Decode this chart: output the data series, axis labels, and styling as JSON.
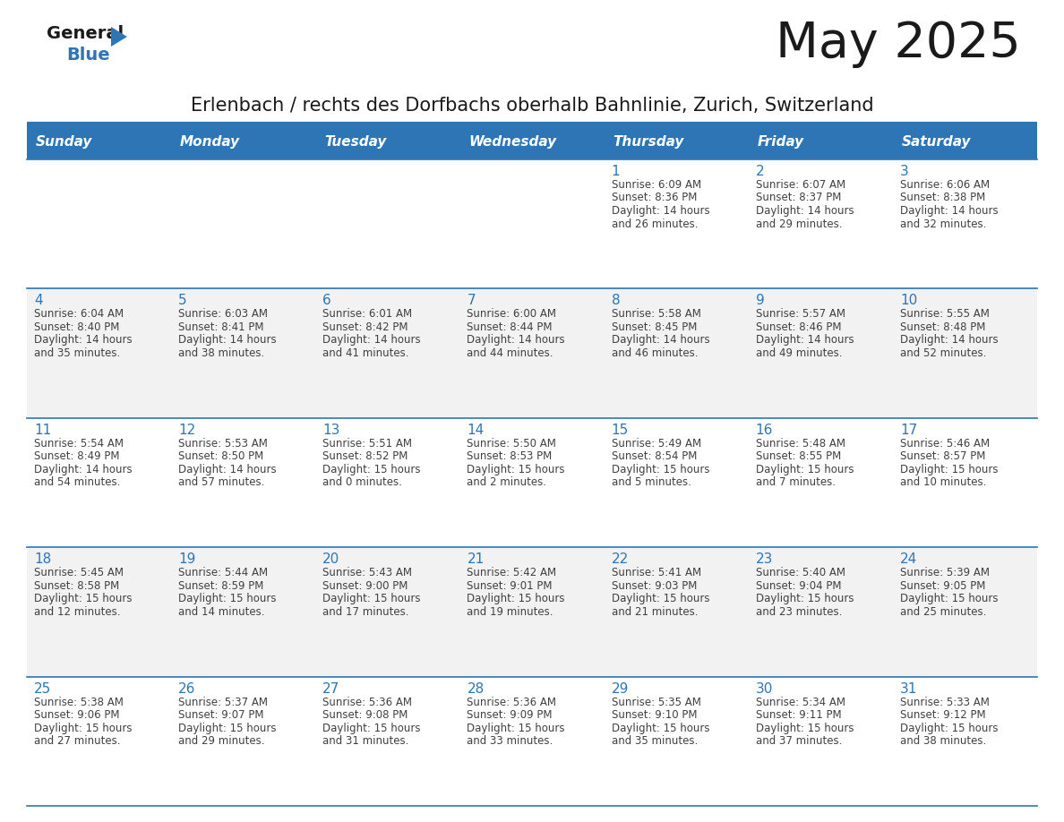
{
  "title": "May 2025",
  "subtitle": "Erlenbach / rechts des Dorfbachs oberhalb Bahnlinie, Zurich, Switzerland",
  "days_of_week": [
    "Sunday",
    "Monday",
    "Tuesday",
    "Wednesday",
    "Thursday",
    "Friday",
    "Saturday"
  ],
  "header_bg": "#2E75B6",
  "header_text": "#FFFFFF",
  "row_bg_odd": "#F2F2F2",
  "row_bg_even": "#FFFFFF",
  "day_num_color": "#2E75B6",
  "text_color": "#404040",
  "border_color": "#2E75B6",
  "logo_color": "#2E75B6",
  "weeks": [
    [
      {
        "day": null
      },
      {
        "day": null
      },
      {
        "day": null
      },
      {
        "day": null
      },
      {
        "day": 1,
        "sunrise": "6:09 AM",
        "sunset": "8:36 PM",
        "daylight": "14 hours",
        "daylight2": "and 26 minutes."
      },
      {
        "day": 2,
        "sunrise": "6:07 AM",
        "sunset": "8:37 PM",
        "daylight": "14 hours",
        "daylight2": "and 29 minutes."
      },
      {
        "day": 3,
        "sunrise": "6:06 AM",
        "sunset": "8:38 PM",
        "daylight": "14 hours",
        "daylight2": "and 32 minutes."
      }
    ],
    [
      {
        "day": 4,
        "sunrise": "6:04 AM",
        "sunset": "8:40 PM",
        "daylight": "14 hours",
        "daylight2": "and 35 minutes."
      },
      {
        "day": 5,
        "sunrise": "6:03 AM",
        "sunset": "8:41 PM",
        "daylight": "14 hours",
        "daylight2": "and 38 minutes."
      },
      {
        "day": 6,
        "sunrise": "6:01 AM",
        "sunset": "8:42 PM",
        "daylight": "14 hours",
        "daylight2": "and 41 minutes."
      },
      {
        "day": 7,
        "sunrise": "6:00 AM",
        "sunset": "8:44 PM",
        "daylight": "14 hours",
        "daylight2": "and 44 minutes."
      },
      {
        "day": 8,
        "sunrise": "5:58 AM",
        "sunset": "8:45 PM",
        "daylight": "14 hours",
        "daylight2": "and 46 minutes."
      },
      {
        "day": 9,
        "sunrise": "5:57 AM",
        "sunset": "8:46 PM",
        "daylight": "14 hours",
        "daylight2": "and 49 minutes."
      },
      {
        "day": 10,
        "sunrise": "5:55 AM",
        "sunset": "8:48 PM",
        "daylight": "14 hours",
        "daylight2": "and 52 minutes."
      }
    ],
    [
      {
        "day": 11,
        "sunrise": "5:54 AM",
        "sunset": "8:49 PM",
        "daylight": "14 hours",
        "daylight2": "and 54 minutes."
      },
      {
        "day": 12,
        "sunrise": "5:53 AM",
        "sunset": "8:50 PM",
        "daylight": "14 hours",
        "daylight2": "and 57 minutes."
      },
      {
        "day": 13,
        "sunrise": "5:51 AM",
        "sunset": "8:52 PM",
        "daylight": "15 hours",
        "daylight2": "and 0 minutes."
      },
      {
        "day": 14,
        "sunrise": "5:50 AM",
        "sunset": "8:53 PM",
        "daylight": "15 hours",
        "daylight2": "and 2 minutes."
      },
      {
        "day": 15,
        "sunrise": "5:49 AM",
        "sunset": "8:54 PM",
        "daylight": "15 hours",
        "daylight2": "and 5 minutes."
      },
      {
        "day": 16,
        "sunrise": "5:48 AM",
        "sunset": "8:55 PM",
        "daylight": "15 hours",
        "daylight2": "and 7 minutes."
      },
      {
        "day": 17,
        "sunrise": "5:46 AM",
        "sunset": "8:57 PM",
        "daylight": "15 hours",
        "daylight2": "and 10 minutes."
      }
    ],
    [
      {
        "day": 18,
        "sunrise": "5:45 AM",
        "sunset": "8:58 PM",
        "daylight": "15 hours",
        "daylight2": "and 12 minutes."
      },
      {
        "day": 19,
        "sunrise": "5:44 AM",
        "sunset": "8:59 PM",
        "daylight": "15 hours",
        "daylight2": "and 14 minutes."
      },
      {
        "day": 20,
        "sunrise": "5:43 AM",
        "sunset": "9:00 PM",
        "daylight": "15 hours",
        "daylight2": "and 17 minutes."
      },
      {
        "day": 21,
        "sunrise": "5:42 AM",
        "sunset": "9:01 PM",
        "daylight": "15 hours",
        "daylight2": "and 19 minutes."
      },
      {
        "day": 22,
        "sunrise": "5:41 AM",
        "sunset": "9:03 PM",
        "daylight": "15 hours",
        "daylight2": "and 21 minutes."
      },
      {
        "day": 23,
        "sunrise": "5:40 AM",
        "sunset": "9:04 PM",
        "daylight": "15 hours",
        "daylight2": "and 23 minutes."
      },
      {
        "day": 24,
        "sunrise": "5:39 AM",
        "sunset": "9:05 PM",
        "daylight": "15 hours",
        "daylight2": "and 25 minutes."
      }
    ],
    [
      {
        "day": 25,
        "sunrise": "5:38 AM",
        "sunset": "9:06 PM",
        "daylight": "15 hours",
        "daylight2": "and 27 minutes."
      },
      {
        "day": 26,
        "sunrise": "5:37 AM",
        "sunset": "9:07 PM",
        "daylight": "15 hours",
        "daylight2": "and 29 minutes."
      },
      {
        "day": 27,
        "sunrise": "5:36 AM",
        "sunset": "9:08 PM",
        "daylight": "15 hours",
        "daylight2": "and 31 minutes."
      },
      {
        "day": 28,
        "sunrise": "5:36 AM",
        "sunset": "9:09 PM",
        "daylight": "15 hours",
        "daylight2": "and 33 minutes."
      },
      {
        "day": 29,
        "sunrise": "5:35 AM",
        "sunset": "9:10 PM",
        "daylight": "15 hours",
        "daylight2": "and 35 minutes."
      },
      {
        "day": 30,
        "sunrise": "5:34 AM",
        "sunset": "9:11 PM",
        "daylight": "15 hours",
        "daylight2": "and 37 minutes."
      },
      {
        "day": 31,
        "sunrise": "5:33 AM",
        "sunset": "9:12 PM",
        "daylight": "15 hours",
        "daylight2": "and 38 minutes."
      }
    ]
  ]
}
